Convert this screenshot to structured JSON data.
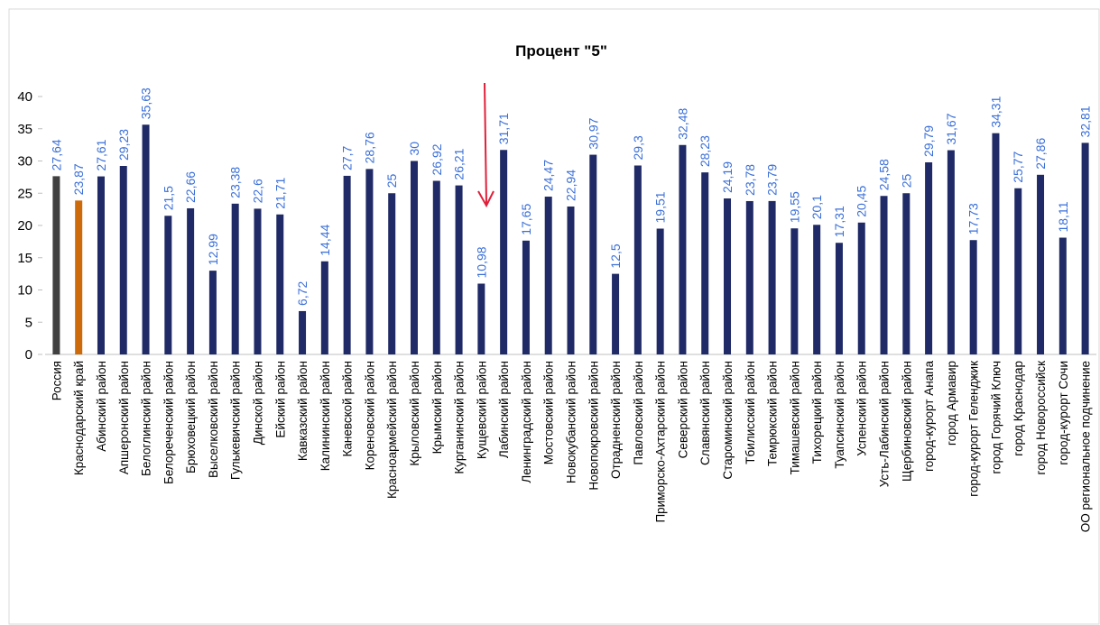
{
  "chart_data": {
    "type": "bar",
    "title": "Процент \"5\"",
    "categories": [
      "Россия",
      "Краснодарский край",
      "Абинский район",
      "Апшеронский район",
      "Белоглинский район",
      "Белореченский район",
      "Брюховецкий район",
      "Выселковский район",
      "Гулькевичский район",
      "Динской район",
      "Ейский район",
      "Кавказский район",
      "Калининский район",
      "Каневской район",
      "Кореновский район",
      "Красноармейский район",
      "Крыловский район",
      "Крымский район",
      "Курганинский район",
      "Кущевский район",
      "Лабинский район",
      "Ленинградский район",
      "Мостовский район",
      "Новокубанский район",
      "Новопокровский район",
      "Отрадненский район",
      "Павловский район",
      "Приморско-Ахтарский район",
      "Северский район",
      "Славянский район",
      "Староминский район",
      "Тбилисский район",
      "Темрюкский район",
      "Тимашевский район",
      "Тихорецкий район",
      "Туапсинский район",
      "Успенский район",
      "Усть-Лабинский район",
      "Щербиновский район",
      "город-курорт Анапа",
      "город Армавир",
      "город-курорт Геленджик",
      "город Горячий Ключ",
      "город Краснодар",
      "город Новороссийск",
      "город-курорт Сочи",
      "ОО региональное подчинение"
    ],
    "values": [
      27.64,
      23.87,
      27.61,
      29.23,
      35.63,
      21.5,
      22.66,
      12.99,
      23.38,
      22.6,
      21.71,
      6.72,
      14.44,
      27.7,
      28.76,
      25,
      30,
      26.92,
      26.21,
      10.98,
      31.71,
      17.65,
      24.47,
      22.94,
      30.97,
      12.5,
      29.3,
      19.51,
      32.48,
      28.23,
      24.19,
      23.78,
      23.79,
      19.55,
      20.1,
      17.31,
      20.45,
      24.58,
      25,
      29.79,
      31.67,
      17.73,
      34.31,
      25.77,
      27.86,
      18.11,
      32.81
    ],
    "value_labels": [
      "27,64",
      "23,87",
      "27,61",
      "29,23",
      "35,63",
      "21,5",
      "22,66",
      "12,99",
      "23,38",
      "22,6",
      "21,71",
      "6,72",
      "14,44",
      "27,7",
      "28,76",
      "25",
      "30",
      "26,92",
      "26,21",
      "10,98",
      "31,71",
      "17,65",
      "24,47",
      "22,94",
      "30,97",
      "12,5",
      "29,3",
      "19,51",
      "32,48",
      "28,23",
      "24,19",
      "23,78",
      "23,79",
      "19,55",
      "20,1",
      "17,31",
      "20,45",
      "24,58",
      "25",
      "29,79",
      "31,67",
      "17,73",
      "34,31",
      "25,77",
      "27,86",
      "18,11",
      "32,81"
    ],
    "colors": [
      "#404040",
      "#cc6a0c",
      "#1f2a66",
      "#1f2a66",
      "#1f2a66",
      "#1f2a66",
      "#1f2a66",
      "#1f2a66",
      "#1f2a66",
      "#1f2a66",
      "#1f2a66",
      "#1f2a66",
      "#1f2a66",
      "#1f2a66",
      "#1f2a66",
      "#1f2a66",
      "#1f2a66",
      "#1f2a66",
      "#1f2a66",
      "#1f2a66",
      "#1f2a66",
      "#1f2a66",
      "#1f2a66",
      "#1f2a66",
      "#1f2a66",
      "#1f2a66",
      "#1f2a66",
      "#1f2a66",
      "#1f2a66",
      "#1f2a66",
      "#1f2a66",
      "#1f2a66",
      "#1f2a66",
      "#1f2a66",
      "#1f2a66",
      "#1f2a66",
      "#1f2a66",
      "#1f2a66",
      "#1f2a66",
      "#1f2a66",
      "#1f2a66",
      "#1f2a66",
      "#1f2a66",
      "#1f2a66",
      "#1f2a66",
      "#1f2a66",
      "#1f2a66"
    ],
    "value_label_color": "#3a6fd8",
    "ylim": [
      0,
      40
    ],
    "yticks": [
      0,
      5,
      10,
      15,
      20,
      25,
      30,
      35,
      40
    ],
    "grid": false
  }
}
